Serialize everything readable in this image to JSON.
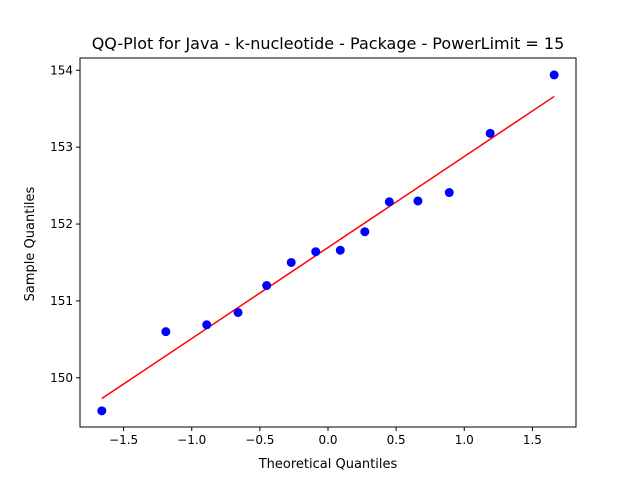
{
  "chart_data": {
    "type": "scatter",
    "title": "QQ-Plot for Java - k-nucleotide - Package - PowerLimit = 15",
    "xlabel": "Theoretical Quantiles",
    "ylabel": "Sample Quantiles",
    "xlim": [
      -1.82,
      1.82
    ],
    "ylim": [
      149.36,
      154.16
    ],
    "x_ticks": [
      -1.5,
      -1.0,
      -0.5,
      0.0,
      0.5,
      1.0,
      1.5
    ],
    "x_tick_labels": [
      "−1.5",
      "−1.0",
      "−0.5",
      "0.0",
      "0.5",
      "1.0",
      "1.5"
    ],
    "y_ticks": [
      150,
      151,
      152,
      153,
      154
    ],
    "y_tick_labels": [
      "150",
      "151",
      "152",
      "153",
      "154"
    ],
    "grid": false,
    "series": [
      {
        "kind": "points",
        "color": "#0000ff",
        "x": [
          -1.66,
          -1.19,
          -0.89,
          -0.66,
          -0.45,
          -0.27,
          -0.09,
          0.09,
          0.27,
          0.45,
          0.66,
          0.89,
          1.19,
          1.66
        ],
        "y": [
          149.57,
          150.6,
          150.69,
          150.85,
          151.2,
          151.5,
          151.64,
          151.66,
          151.9,
          152.29,
          152.3,
          152.41,
          153.18,
          153.94
        ]
      },
      {
        "kind": "reference-line",
        "color": "#ff0000",
        "x": [
          -1.66,
          1.66
        ],
        "y": [
          149.73,
          153.66
        ]
      }
    ]
  }
}
